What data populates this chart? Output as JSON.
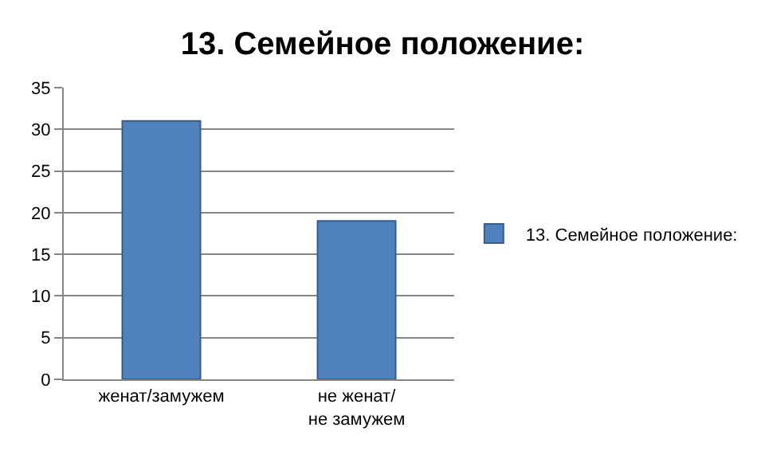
{
  "chart_data": {
    "type": "bar",
    "title": "13. Семейное положение:",
    "categories": [
      "женат/замужем",
      "не женат/не замужем"
    ],
    "series": [
      {
        "name": "13. Семейное положение:",
        "color": "#4f81bd",
        "values": [
          31,
          19
        ]
      }
    ],
    "ylim": [
      0,
      35
    ],
    "yticks": [
      0,
      5,
      10,
      15,
      20,
      25,
      30,
      35
    ],
    "grid": "y",
    "legend": "right"
  }
}
